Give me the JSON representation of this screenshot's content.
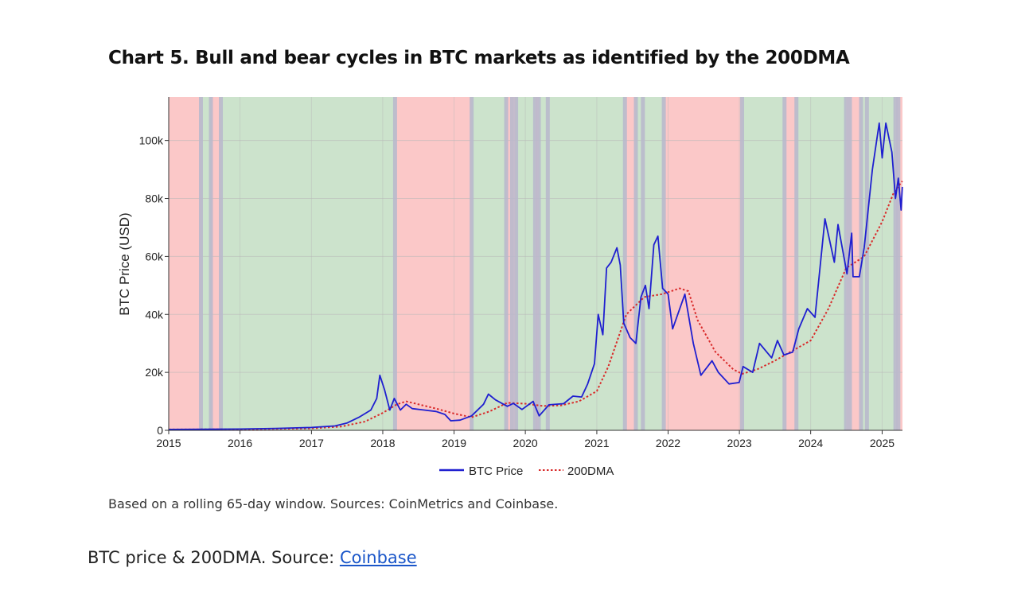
{
  "chart_data": {
    "type": "line",
    "title": "Chart 5. Bull and bear cycles in BTC markets as identified by the 200DMA",
    "xlabel": "",
    "ylabel": "BTC Price (USD)",
    "xlim": [
      "2015-01-01",
      "2025-04-15"
    ],
    "ylim": [
      0,
      115000
    ],
    "x_ticks": [
      "2015",
      "2016",
      "2017",
      "2018",
      "2019",
      "2020",
      "2021",
      "2022",
      "2023",
      "2024",
      "2025"
    ],
    "y_ticks": [
      0,
      20000,
      40000,
      60000,
      80000,
      100000
    ],
    "y_tick_labels": [
      "0",
      "20k",
      "40k",
      "60k",
      "80k",
      "100k"
    ],
    "legend": {
      "position": "bottom-center",
      "entries": [
        "BTC Price",
        "200DMA"
      ]
    },
    "colors": {
      "price": "#1f1fd0",
      "dma": "#d92b2b",
      "bull": "#cce3cc",
      "bear": "#fbc8c8",
      "transition": "#b9b9cc"
    },
    "regimes": [
      {
        "start": "2015-01-01",
        "end": "2015-06-15",
        "type": "bear"
      },
      {
        "start": "2015-06-15",
        "end": "2015-08-05",
        "type": "bull"
      },
      {
        "start": "2015-08-05",
        "end": "2015-09-25",
        "type": "bear"
      },
      {
        "start": "2015-09-25",
        "end": "2018-03-05",
        "type": "bull"
      },
      {
        "start": "2018-03-05",
        "end": "2019-04-01",
        "type": "bear"
      },
      {
        "start": "2019-04-01",
        "end": "2019-09-25",
        "type": "bull"
      },
      {
        "start": "2019-09-25",
        "end": "2019-11-15",
        "type": "bear"
      },
      {
        "start": "2019-11-15",
        "end": "2020-02-20",
        "type": "bull"
      },
      {
        "start": "2020-02-20",
        "end": "2020-03-10",
        "type": "bear"
      },
      {
        "start": "2020-03-10",
        "end": "2020-04-25",
        "type": "bull"
      },
      {
        "start": "2020-04-25",
        "end": "2021-05-25",
        "type": "bull"
      },
      {
        "start": "2021-05-25",
        "end": "2021-07-20",
        "type": "bear"
      },
      {
        "start": "2021-07-20",
        "end": "2021-12-10",
        "type": "bull"
      },
      {
        "start": "2021-12-10",
        "end": "2023-01-15",
        "type": "bear"
      },
      {
        "start": "2023-01-15",
        "end": "2023-08-20",
        "type": "bull"
      },
      {
        "start": "2023-08-20",
        "end": "2023-10-20",
        "type": "bear"
      },
      {
        "start": "2023-10-20",
        "end": "2024-06-30",
        "type": "bull"
      },
      {
        "start": "2024-06-30",
        "end": "2024-09-15",
        "type": "bear"
      },
      {
        "start": "2024-09-15",
        "end": "2024-10-15",
        "type": "bull"
      },
      {
        "start": "2024-10-15",
        "end": "2025-03-10",
        "type": "bull"
      },
      {
        "start": "2025-03-10",
        "end": "2025-04-15",
        "type": "bear"
      }
    ],
    "transitions": [
      "2015-06-15",
      "2015-08-05",
      "2015-09-25",
      "2018-03-05",
      "2019-04-01",
      "2019-09-25",
      "2019-10-25",
      "2019-11-15",
      "2020-02-20",
      "2020-03-10",
      "2020-04-25",
      "2021-05-25",
      "2021-07-20",
      "2021-08-25",
      "2021-12-10",
      "2023-01-15",
      "2023-08-20",
      "2023-10-20",
      "2024-06-30",
      "2024-07-20",
      "2024-09-15",
      "2024-10-15",
      "2025-03-10",
      "2025-03-25"
    ],
    "series": [
      {
        "name": "BTC Price",
        "style": "solid",
        "points": [
          [
            "2015-01-01",
            300
          ],
          [
            "2016-01-01",
            430
          ],
          [
            "2016-07-01",
            670
          ],
          [
            "2017-01-01",
            1000
          ],
          [
            "2017-05-01",
            1500
          ],
          [
            "2017-07-01",
            2500
          ],
          [
            "2017-09-01",
            4500
          ],
          [
            "2017-11-01",
            7000
          ],
          [
            "2017-12-01",
            11000
          ],
          [
            "2017-12-17",
            19000
          ],
          [
            "2018-01-10",
            14000
          ],
          [
            "2018-02-06",
            7000
          ],
          [
            "2018-03-01",
            11000
          ],
          [
            "2018-04-01",
            7000
          ],
          [
            "2018-05-01",
            9000
          ],
          [
            "2018-06-01",
            7500
          ],
          [
            "2018-08-01",
            7000
          ],
          [
            "2018-10-01",
            6500
          ],
          [
            "2018-11-15",
            5500
          ],
          [
            "2018-12-15",
            3300
          ],
          [
            "2019-02-01",
            3500
          ],
          [
            "2019-04-01",
            5000
          ],
          [
            "2019-06-01",
            9000
          ],
          [
            "2019-06-26",
            12500
          ],
          [
            "2019-08-01",
            10500
          ],
          [
            "2019-10-01",
            8300
          ],
          [
            "2019-11-01",
            9300
          ],
          [
            "2019-12-15",
            7200
          ],
          [
            "2020-02-10",
            10000
          ],
          [
            "2020-03-12",
            5000
          ],
          [
            "2020-05-01",
            8800
          ],
          [
            "2020-07-15",
            9200
          ],
          [
            "2020-09-01",
            11800
          ],
          [
            "2020-10-15",
            11500
          ],
          [
            "2020-11-15",
            16000
          ],
          [
            "2020-12-20",
            23000
          ],
          [
            "2021-01-08",
            40000
          ],
          [
            "2021-02-01",
            33000
          ],
          [
            "2021-02-20",
            56000
          ],
          [
            "2021-03-15",
            58000
          ],
          [
            "2021-04-14",
            63000
          ],
          [
            "2021-05-01",
            57000
          ],
          [
            "2021-05-19",
            37000
          ],
          [
            "2021-06-20",
            32000
          ],
          [
            "2021-07-20",
            30000
          ],
          [
            "2021-08-15",
            46000
          ],
          [
            "2021-09-07",
            50000
          ],
          [
            "2021-09-25",
            42000
          ],
          [
            "2021-10-20",
            64000
          ],
          [
            "2021-11-10",
            67000
          ],
          [
            "2021-12-04",
            49000
          ],
          [
            "2022-01-01",
            47000
          ],
          [
            "2022-01-24",
            35000
          ],
          [
            "2022-03-28",
            47000
          ],
          [
            "2022-05-10",
            30000
          ],
          [
            "2022-06-18",
            19000
          ],
          [
            "2022-08-14",
            24000
          ],
          [
            "2022-09-15",
            20000
          ],
          [
            "2022-11-09",
            16000
          ],
          [
            "2022-12-31",
            16500
          ],
          [
            "2023-01-20",
            22000
          ],
          [
            "2023-03-10",
            20000
          ],
          [
            "2023-04-14",
            30000
          ],
          [
            "2023-06-15",
            25000
          ],
          [
            "2023-07-15",
            31000
          ],
          [
            "2023-08-17",
            26000
          ],
          [
            "2023-10-01",
            27000
          ],
          [
            "2023-11-01",
            35000
          ],
          [
            "2023-12-15",
            42000
          ],
          [
            "2024-01-23",
            39000
          ],
          [
            "2024-03-14",
            73000
          ],
          [
            "2024-05-01",
            58000
          ],
          [
            "2024-05-20",
            71000
          ],
          [
            "2024-07-05",
            54000
          ],
          [
            "2024-07-29",
            68000
          ],
          [
            "2024-08-05",
            53000
          ],
          [
            "2024-09-06",
            53000
          ],
          [
            "2024-10-01",
            63000
          ],
          [
            "2024-11-12",
            90000
          ],
          [
            "2024-12-17",
            106000
          ],
          [
            "2025-01-01",
            94000
          ],
          [
            "2025-01-20",
            106000
          ],
          [
            "2025-02-20",
            96000
          ],
          [
            "2025-03-10",
            80000
          ],
          [
            "2025-03-25",
            87000
          ],
          [
            "2025-04-08",
            76000
          ],
          [
            "2025-04-14",
            84000
          ]
        ]
      },
      {
        "name": "200DMA",
        "style": "dotted",
        "points": [
          [
            "2015-01-01",
            300
          ],
          [
            "2016-01-01",
            350
          ],
          [
            "2017-01-01",
            650
          ],
          [
            "2017-06-01",
            1300
          ],
          [
            "2017-10-01",
            3000
          ],
          [
            "2018-01-01",
            6000
          ],
          [
            "2018-03-15",
            9000
          ],
          [
            "2018-05-01",
            10000
          ],
          [
            "2018-07-01",
            9000
          ],
          [
            "2018-10-01",
            7500
          ],
          [
            "2019-01-01",
            5800
          ],
          [
            "2019-04-01",
            4500
          ],
          [
            "2019-07-01",
            6500
          ],
          [
            "2019-10-01",
            9500
          ],
          [
            "2020-01-01",
            9200
          ],
          [
            "2020-04-01",
            8400
          ],
          [
            "2020-07-01",
            8600
          ],
          [
            "2020-10-01",
            10000
          ],
          [
            "2021-01-01",
            13500
          ],
          [
            "2021-03-01",
            22000
          ],
          [
            "2021-06-01",
            40000
          ],
          [
            "2021-09-01",
            46000
          ],
          [
            "2021-12-01",
            47000
          ],
          [
            "2022-03-01",
            49000
          ],
          [
            "2022-04-15",
            48000
          ],
          [
            "2022-06-01",
            38000
          ],
          [
            "2022-09-01",
            27000
          ],
          [
            "2022-12-01",
            21000
          ],
          [
            "2023-01-15",
            19500
          ],
          [
            "2023-04-01",
            21000
          ],
          [
            "2023-07-01",
            24000
          ],
          [
            "2023-10-01",
            27500
          ],
          [
            "2024-01-01",
            31000
          ],
          [
            "2024-04-01",
            42000
          ],
          [
            "2024-07-01",
            56000
          ],
          [
            "2024-10-01",
            60000
          ],
          [
            "2025-01-01",
            72000
          ],
          [
            "2025-03-01",
            82000
          ],
          [
            "2025-04-14",
            86000
          ]
        ]
      }
    ],
    "note": "Based on a rolling 65-day window. Sources: CoinMetrics and Coinbase."
  },
  "caption": {
    "text": "BTC price & 200DMA. Source: ",
    "link_label": "Coinbase"
  }
}
